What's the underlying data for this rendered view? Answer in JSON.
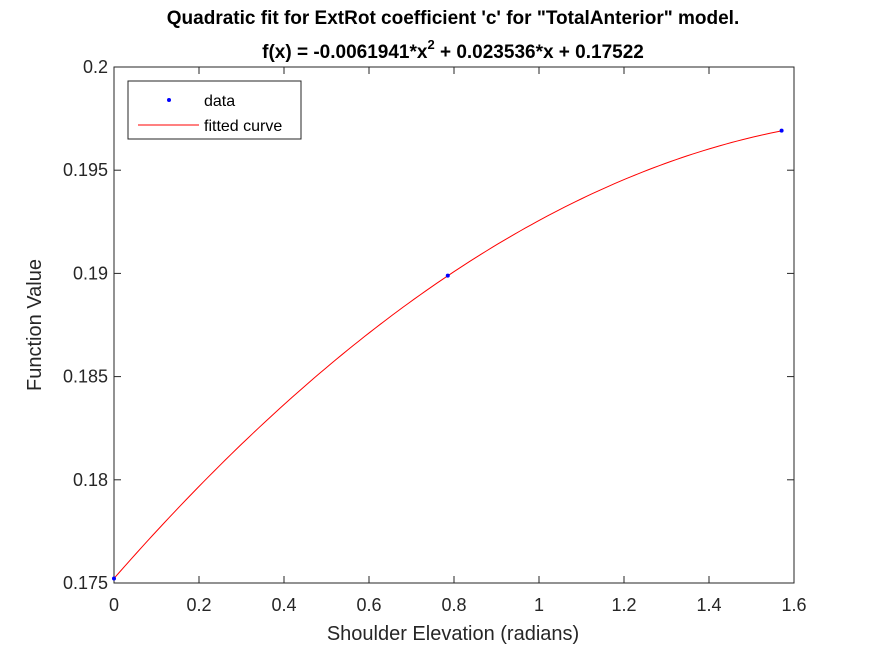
{
  "chart_data": {
    "type": "line",
    "title_line1": "Quadratic fit for ExtRot coefficient 'c' for \"TotalAnterior\" model.",
    "title_line2_prefix": "f(x) = -0.0061941*x",
    "title_line2_sup": "2",
    "title_line2_suffix": " + 0.023536*x + 0.17522",
    "xlabel": "Shoulder Elevation (radians)",
    "ylabel": "Function Value",
    "xlim": [
      0,
      1.6
    ],
    "ylim": [
      0.175,
      0.2
    ],
    "xticks": [
      0,
      0.2,
      0.4,
      0.6,
      0.8,
      1,
      1.2,
      1.4,
      1.6
    ],
    "xtick_labels": [
      "0",
      "0.2",
      "0.4",
      "0.6",
      "0.8",
      "1",
      "1.2",
      "1.4",
      "1.6"
    ],
    "yticks": [
      0.175,
      0.18,
      0.185,
      0.19,
      0.195,
      0.2
    ],
    "ytick_labels": [
      "0.175",
      "0.18",
      "0.185",
      "0.19",
      "0.195",
      "0.2"
    ],
    "legend_position": "top-left",
    "grid": false,
    "series": [
      {
        "name": "data",
        "kind": "points",
        "color": "#0000ff",
        "x": [
          0,
          0.7854,
          1.5708
        ],
        "y": [
          0.17522,
          0.18989,
          0.19692
        ]
      },
      {
        "name": "fitted curve",
        "kind": "line",
        "color": "#ff0000",
        "coefficients": {
          "a": -0.0061941,
          "b": 0.023536,
          "c": 0.17522
        },
        "x_range": [
          0,
          1.5708
        ]
      }
    ]
  }
}
